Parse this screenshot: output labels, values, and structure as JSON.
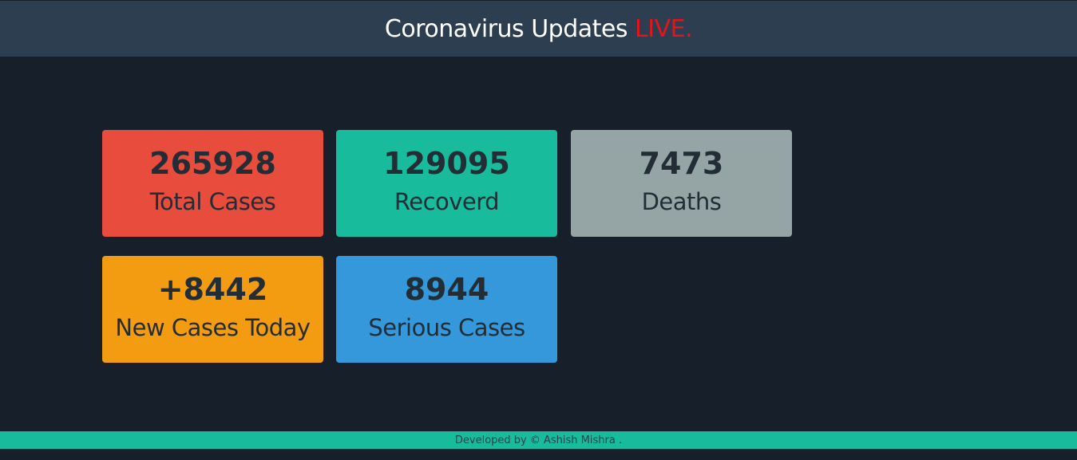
{
  "header": {
    "title": "Coronavirus Updates",
    "live": "LIVE."
  },
  "cards": [
    {
      "value": "265928",
      "label": "Total Cases",
      "color": "#e74c3c"
    },
    {
      "value": "129095",
      "label": "Recoverd",
      "color": "#18bc9c"
    },
    {
      "value": "7473",
      "label": "Deaths",
      "color": "#95a5a6"
    },
    {
      "value": "+8442",
      "label": "New Cases Today",
      "color": "#f39c12"
    },
    {
      "value": "8944",
      "label": "Serious Cases",
      "color": "#3498db"
    }
  ],
  "footer": {
    "text": "Developed by © Ashish Mishra ."
  }
}
